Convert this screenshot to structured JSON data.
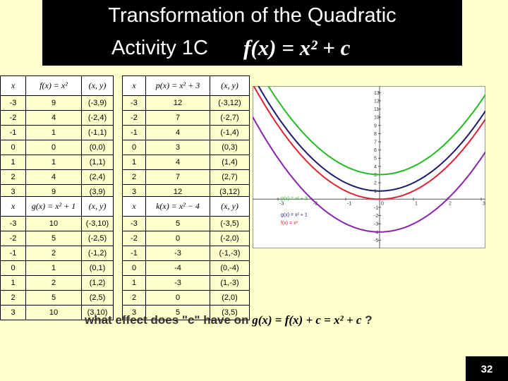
{
  "title": {
    "line1": "Transformation of  the Quadratic",
    "line2": "Activity 1C",
    "formula": "f(x) = x² + c"
  },
  "tables": [
    {
      "headers": [
        "x",
        "f(x) = x²",
        "(x, y)"
      ],
      "rows": [
        [
          "-3",
          "9",
          "(-3,9)"
        ],
        [
          "-2",
          "4",
          "(-2,4)"
        ],
        [
          "-1",
          "1",
          "(-1,1)"
        ],
        [
          "0",
          "0",
          "(0,0)"
        ],
        [
          "1",
          "1",
          "(1,1)"
        ],
        [
          "2",
          "4",
          "(2,4)"
        ],
        [
          "3",
          "9",
          "(3,9)"
        ]
      ]
    },
    {
      "headers": [
        "x",
        "p(x) = x² + 3",
        "(x, y)"
      ],
      "rows": [
        [
          "-3",
          "12",
          "(-3,12)"
        ],
        [
          "-2",
          "7",
          "(-2,7)"
        ],
        [
          "-1",
          "4",
          "(-1,4)"
        ],
        [
          "0",
          "3",
          "(0,3)"
        ],
        [
          "1",
          "4",
          "(1,4)"
        ],
        [
          "2",
          "7",
          "(2,7)"
        ],
        [
          "3",
          "12",
          "(3,12)"
        ]
      ]
    },
    {
      "headers": [
        "x",
        "g(x) = x² + 1",
        "(x, y)"
      ],
      "rows": [
        [
          "-3",
          "10",
          "(-3,10)"
        ],
        [
          "-2",
          "5",
          "(-2,5)"
        ],
        [
          "-1",
          "2",
          "(-1,2)"
        ],
        [
          "0",
          "1",
          "(0,1)"
        ],
        [
          "1",
          "2",
          "(1,2)"
        ],
        [
          "2",
          "5",
          "(2,5)"
        ],
        [
          "3",
          "10",
          "(3,10)"
        ]
      ]
    },
    {
      "headers": [
        "x",
        "k(x) = x² − 4",
        "(x, y)"
      ],
      "rows": [
        [
          "-3",
          "5",
          "(-3,5)"
        ],
        [
          "-2",
          "0",
          "(-2,0)"
        ],
        [
          "-1",
          "-3",
          "(-1,-3)"
        ],
        [
          "0",
          "-4",
          "(0,-4)"
        ],
        [
          "1",
          "-3",
          "(1,-3)"
        ],
        [
          "2",
          "0",
          "(2,0)"
        ],
        [
          "3",
          "5",
          "(3,5)"
        ]
      ]
    }
  ],
  "graph": {
    "xlim": [
      -3.75,
      3.125
    ],
    "ylim": [
      -6,
      13.8
    ],
    "xticks": [
      -3,
      -2,
      -1,
      0,
      1,
      2,
      3
    ],
    "yticks": [
      -5,
      -4,
      -3,
      -2,
      -1,
      1,
      2,
      3,
      4,
      5,
      6,
      7,
      8,
      9,
      10,
      11,
      12,
      13
    ],
    "curves": [
      {
        "label": "p(x) = x² + 3",
        "color": "#22bb22",
        "c": 3
      },
      {
        "label": "g(x) = x² + 1",
        "color": "#1a1a6e",
        "c": 1
      },
      {
        "label": "f(x) = x²",
        "color": "#dd2233",
        "c": 0
      },
      {
        "label": "k(x) = x² − 4",
        "color": "#8a22aa",
        "c": -4
      }
    ]
  },
  "question": {
    "text": "what effect does \"c\" have on",
    "formula": "g(x) = f(x) + c = x² + c",
    "mark": "?"
  },
  "page_number": "32"
}
